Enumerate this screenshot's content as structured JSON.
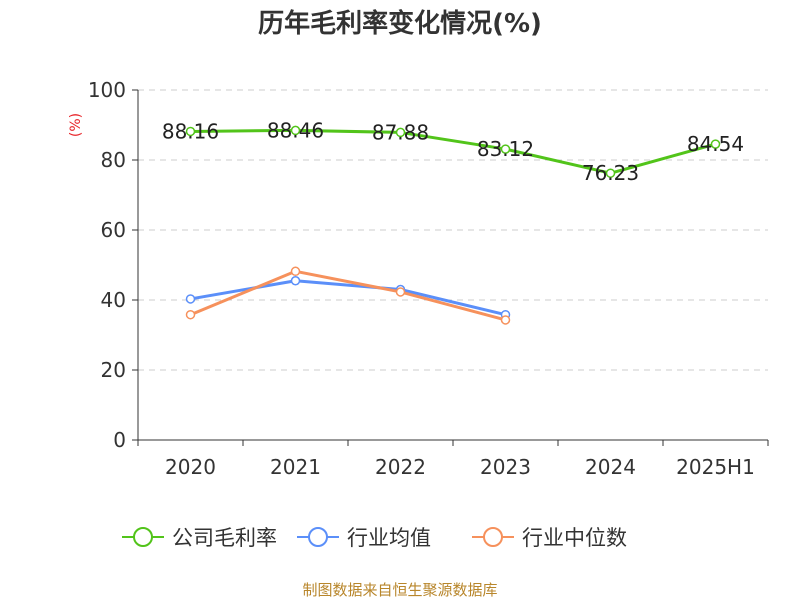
{
  "chart_data": {
    "type": "line",
    "title": "历年毛利率变化情况(%)",
    "y_unit": "(%)",
    "categories": [
      "2020",
      "2021",
      "2022",
      "2023",
      "2024",
      "2025H1"
    ],
    "ylim": [
      0,
      100
    ],
    "yticks": [
      0,
      20,
      40,
      60,
      80,
      100
    ],
    "grid": true,
    "legend_position": "bottom",
    "series": [
      {
        "name": "公司毛利率",
        "color": "#52c41a",
        "values": [
          88.16,
          88.46,
          87.88,
          83.12,
          76.23,
          84.54
        ],
        "labels": [
          "88.16",
          "88.46",
          "87.88",
          "83.12",
          "76.23",
          "84.54"
        ]
      },
      {
        "name": "行业均值",
        "color": "#5b8ff9",
        "values": [
          40.3,
          45.5,
          43.0,
          35.8,
          null,
          null
        ]
      },
      {
        "name": "行业中位数",
        "color": "#f6915c",
        "values": [
          35.8,
          48.2,
          42.3,
          34.3,
          null,
          null
        ]
      }
    ]
  },
  "footer": {
    "source": "制图数据来自恒生聚源数据库"
  }
}
